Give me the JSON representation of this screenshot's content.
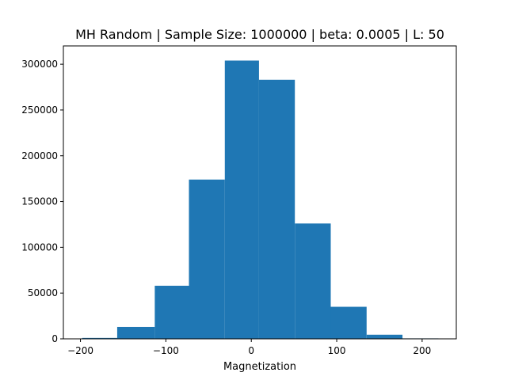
{
  "chart_data": {
    "type": "bar",
    "title": "MH Random | Sample Size: 1000000 | beta: 0.0005 | L: 50",
    "xlabel": "Magnetization",
    "ylabel": "",
    "bin_edges": [
      -198,
      -157,
      -113,
      -73,
      -31,
      9,
      51,
      93,
      135,
      177,
      219
    ],
    "values": [
      1000,
      13000,
      58000,
      174000,
      304000,
      283000,
      126000,
      35000,
      4500,
      500
    ],
    "xlim": [
      -220,
      240
    ],
    "ylim": [
      0,
      320000
    ],
    "xticks": [
      -200,
      -100,
      0,
      100,
      200
    ],
    "yticks": [
      0,
      50000,
      100000,
      150000,
      200000,
      250000,
      300000
    ],
    "xtick_labels": [
      "−200",
      "−100",
      "0",
      "100",
      "200"
    ],
    "ytick_labels": [
      "0",
      "50000",
      "100000",
      "150000",
      "200000",
      "250000",
      "300000"
    ],
    "bar_color": "#1f77b4",
    "grid": false,
    "legend": false
  }
}
